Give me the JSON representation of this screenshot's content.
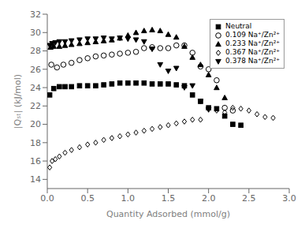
{
  "chart_data": {
    "type": "scatter",
    "xlabel": "Quantity Adsorbed (mmol/g)",
    "ylabel": "|Qₛₜ| (kJ/mol)",
    "xlim": [
      0.0,
      3.0
    ],
    "ylim": [
      13,
      32
    ],
    "xticks": [
      {
        "value": 0.0,
        "label": "0.0"
      },
      0.5,
      {
        "value": 1.0,
        "label": "1.0"
      },
      1.5,
      {
        "value": 2.0,
        "label": "2.0"
      },
      2.5,
      {
        "value": 3.0,
        "label": "3.0"
      }
    ],
    "yticks": [
      14,
      16,
      18,
      20,
      22,
      24,
      26,
      28,
      30,
      32
    ],
    "grid": false,
    "legend": "upper right",
    "series": [
      {
        "name": "Neutral",
        "marker": "square",
        "color": "black",
        "x": [
          0.03,
          0.08,
          0.15,
          0.22,
          0.3,
          0.4,
          0.5,
          0.6,
          0.7,
          0.8,
          0.9,
          1.0,
          1.1,
          1.2,
          1.3,
          1.4,
          1.5,
          1.6,
          1.7,
          1.8,
          1.9,
          2.0,
          2.1,
          2.2,
          2.3,
          2.4
        ],
        "values": [
          23.2,
          23.9,
          24.1,
          24.1,
          24.1,
          24.2,
          24.2,
          24.2,
          24.3,
          24.4,
          24.5,
          24.5,
          24.5,
          24.5,
          24.4,
          24.4,
          24.4,
          24.3,
          24.2,
          23.2,
          22.5,
          21.8,
          21.7,
          20.9,
          20.0,
          19.9
        ]
      },
      {
        "name": "0.109 Na⁺/Zn²⁺",
        "marker": "open-circle",
        "color": "black",
        "x": [
          0.05,
          0.12,
          0.2,
          0.3,
          0.4,
          0.5,
          0.6,
          0.7,
          0.8,
          0.9,
          1.0,
          1.1,
          1.2,
          1.3,
          1.4,
          1.5,
          1.6,
          1.7,
          1.8,
          1.9,
          2.0,
          2.1,
          2.2,
          2.3
        ],
        "values": [
          26.5,
          26.2,
          26.5,
          26.7,
          27.0,
          27.2,
          27.4,
          27.5,
          27.6,
          27.7,
          27.8,
          27.9,
          28.3,
          28.4,
          28.3,
          28.3,
          28.6,
          28.6,
          27.8,
          26.3,
          26.0,
          24.8,
          21.8,
          21.5
        ]
      },
      {
        "name": "0.233 Na⁺/Zn²⁺",
        "marker": "triangle-up",
        "color": "black",
        "x": [
          0.04,
          0.08,
          0.15,
          0.22,
          0.3,
          0.4,
          0.5,
          0.6,
          0.7,
          0.8,
          0.9,
          1.0,
          1.1,
          1.2,
          1.3,
          1.4,
          1.5,
          1.6,
          1.7,
          1.8,
          1.9,
          2.0,
          2.1,
          2.2
        ],
        "values": [
          28.4,
          28.5,
          28.5,
          28.6,
          28.7,
          28.8,
          28.9,
          29.0,
          29.1,
          29.2,
          29.4,
          29.7,
          30.0,
          30.2,
          30.3,
          30.2,
          29.8,
          29.5,
          28.5,
          27.3,
          26.5,
          25.4,
          24.0,
          22.9
        ]
      },
      {
        "name": "0.367 Na⁺/Zn²⁺",
        "marker": "open-diamond",
        "color": "black",
        "x": [
          0.03,
          0.06,
          0.1,
          0.15,
          0.22,
          0.3,
          0.4,
          0.5,
          0.6,
          0.7,
          0.8,
          0.9,
          1.0,
          1.1,
          1.2,
          1.3,
          1.4,
          1.5,
          1.6,
          1.7,
          1.8,
          1.9,
          2.0,
          2.1,
          2.2,
          2.3,
          2.4,
          2.5,
          2.6,
          2.7,
          2.8
        ],
        "values": [
          15.3,
          16.0,
          16.2,
          16.5,
          16.9,
          17.2,
          17.5,
          17.8,
          18.0,
          18.3,
          18.5,
          18.7,
          18.9,
          19.1,
          19.3,
          19.5,
          19.7,
          19.9,
          20.1,
          20.3,
          20.5,
          20.5,
          21.7,
          21.5,
          21.3,
          21.8,
          21.7,
          21.5,
          21.1,
          20.8,
          20.7
        ]
      },
      {
        "name": "0.378 Na⁺/Zn²⁺",
        "marker": "triangle-down",
        "color": "black",
        "x": [
          0.03,
          0.06,
          0.1,
          0.15,
          0.22,
          0.3,
          0.4,
          0.5,
          0.6,
          0.7,
          0.8,
          0.9,
          1.0,
          1.1,
          1.2,
          1.3,
          1.4,
          1.5,
          1.6,
          1.7,
          1.8,
          1.9,
          2.0
        ],
        "values": [
          28.6,
          28.8,
          28.9,
          29.0,
          29.0,
          29.1,
          29.2,
          29.3,
          29.3,
          29.4,
          29.3,
          29.4,
          29.3,
          29.2,
          29.0,
          28.2,
          26.5,
          25.8,
          26.1,
          24.0,
          24.2,
          22.5,
          21.6
        ]
      }
    ]
  }
}
